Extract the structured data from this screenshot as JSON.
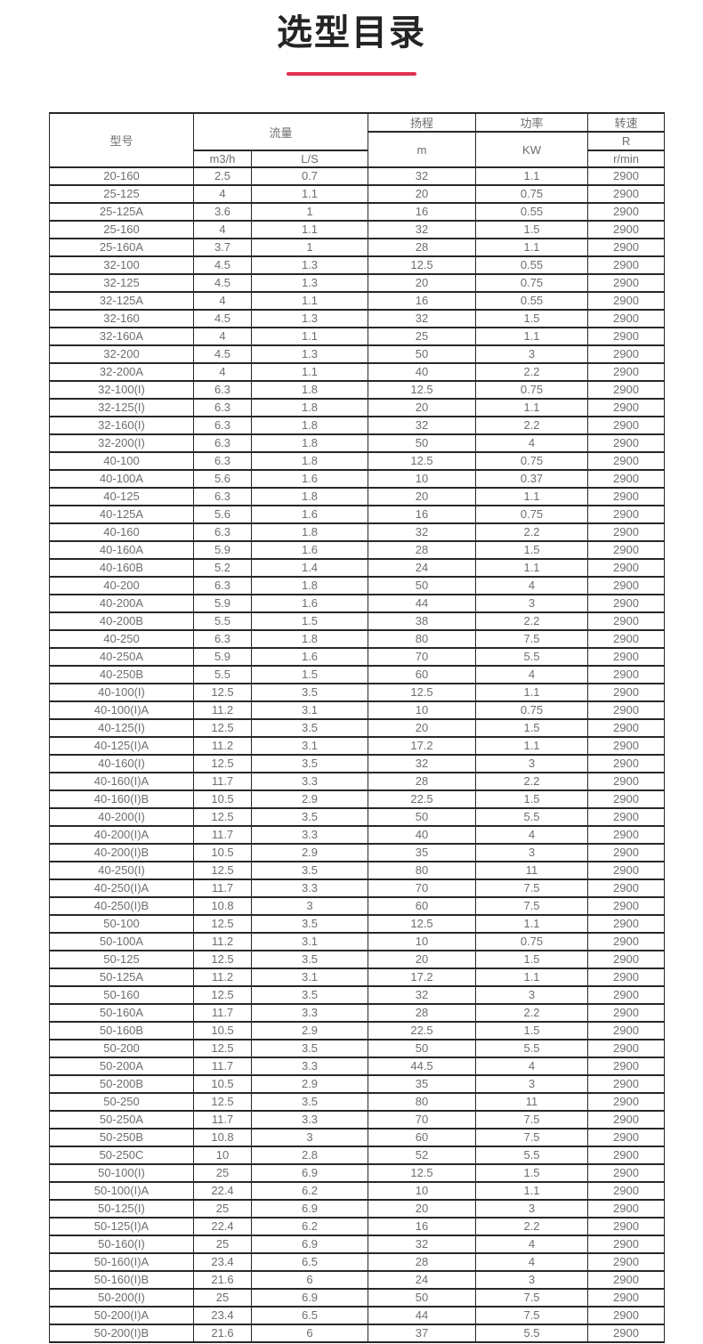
{
  "page": {
    "title": "选型目录"
  },
  "colors": {
    "accent_divider": "#e2304e",
    "title_text": "#242424",
    "table_text": "#6e6e6e",
    "table_border": "#272727",
    "background": "#ffffff"
  },
  "table": {
    "headers": {
      "model": "型号",
      "flow": "流量",
      "flow_m3h": "m3/h",
      "flow_ls": "L/S",
      "head": "扬程",
      "head_unit": "m",
      "power": "功率",
      "power_unit": "KW",
      "speed": "转速",
      "speed_r": "R",
      "speed_unit": "r/min"
    },
    "rows": [
      [
        "20-160",
        "2.5",
        "0.7",
        "32",
        "1.1",
        "2900"
      ],
      [
        "25-125",
        "4",
        "1.1",
        "20",
        "0.75",
        "2900"
      ],
      [
        "25-125A",
        "3.6",
        "1",
        "16",
        "0.55",
        "2900"
      ],
      [
        "25-160",
        "4",
        "1.1",
        "32",
        "1.5",
        "2900"
      ],
      [
        "25-160A",
        "3.7",
        "1",
        "28",
        "1.1",
        "2900"
      ],
      [
        "32-100",
        "4.5",
        "1.3",
        "12.5",
        "0.55",
        "2900"
      ],
      [
        "32-125",
        "4.5",
        "1.3",
        "20",
        "0.75",
        "2900"
      ],
      [
        "32-125A",
        "4",
        "1.1",
        "16",
        "0.55",
        "2900"
      ],
      [
        "32-160",
        "4.5",
        "1.3",
        "32",
        "1.5",
        "2900"
      ],
      [
        "32-160A",
        "4",
        "1.1",
        "25",
        "1.1",
        "2900"
      ],
      [
        "32-200",
        "4.5",
        "1.3",
        "50",
        "3",
        "2900"
      ],
      [
        "32-200A",
        "4",
        "1.1",
        "40",
        "2.2",
        "2900"
      ],
      [
        "32-100(I)",
        "6.3",
        "1.8",
        "12.5",
        "0.75",
        "2900"
      ],
      [
        "32-125(I)",
        "6.3",
        "1.8",
        "20",
        "1.1",
        "2900"
      ],
      [
        "32-160(I)",
        "6.3",
        "1.8",
        "32",
        "2.2",
        "2900"
      ],
      [
        "32-200(I)",
        "6.3",
        "1.8",
        "50",
        "4",
        "2900"
      ],
      [
        "40-100",
        "6.3",
        "1.8",
        "12.5",
        "0.75",
        "2900"
      ],
      [
        "40-100A",
        "5.6",
        "1.6",
        "10",
        "0.37",
        "2900"
      ],
      [
        "40-125",
        "6.3",
        "1.8",
        "20",
        "1.1",
        "2900"
      ],
      [
        "40-125A",
        "5.6",
        "1.6",
        "16",
        "0.75",
        "2900"
      ],
      [
        "40-160",
        "6.3",
        "1.8",
        "32",
        "2.2",
        "2900"
      ],
      [
        "40-160A",
        "5.9",
        "1.6",
        "28",
        "1.5",
        "2900"
      ],
      [
        "40-160B",
        "5.2",
        "1.4",
        "24",
        "1.1",
        "2900"
      ],
      [
        "40-200",
        "6.3",
        "1.8",
        "50",
        "4",
        "2900"
      ],
      [
        "40-200A",
        "5.9",
        "1.6",
        "44",
        "3",
        "2900"
      ],
      [
        "40-200B",
        "5.5",
        "1.5",
        "38",
        "2.2",
        "2900"
      ],
      [
        "40-250",
        "6.3",
        "1.8",
        "80",
        "7.5",
        "2900"
      ],
      [
        "40-250A",
        "5.9",
        "1.6",
        "70",
        "5.5",
        "2900"
      ],
      [
        "40-250B",
        "5.5",
        "1.5",
        "60",
        "4",
        "2900"
      ],
      [
        "40-100(I)",
        "12.5",
        "3.5",
        "12.5",
        "1.1",
        "2900"
      ],
      [
        "40-100(I)A",
        "11.2",
        "3.1",
        "10",
        "0.75",
        "2900"
      ],
      [
        "40-125(I)",
        "12.5",
        "3.5",
        "20",
        "1.5",
        "2900"
      ],
      [
        "40-125(I)A",
        "11.2",
        "3.1",
        "17.2",
        "1.1",
        "2900"
      ],
      [
        "40-160(I)",
        "12.5",
        "3.5",
        "32",
        "3",
        "2900"
      ],
      [
        "40-160(I)A",
        "11.7",
        "3.3",
        "28",
        "2.2",
        "2900"
      ],
      [
        "40-160(I)B",
        "10.5",
        "2.9",
        "22.5",
        "1.5",
        "2900"
      ],
      [
        "40-200(I)",
        "12.5",
        "3.5",
        "50",
        "5.5",
        "2900"
      ],
      [
        "40-200(I)A",
        "11.7",
        "3.3",
        "40",
        "4",
        "2900"
      ],
      [
        "40-200(I)B",
        "10.5",
        "2.9",
        "35",
        "3",
        "2900"
      ],
      [
        "40-250(I)",
        "12.5",
        "3.5",
        "80",
        "11",
        "2900"
      ],
      [
        "40-250(I)A",
        "11.7",
        "3.3",
        "70",
        "7.5",
        "2900"
      ],
      [
        "40-250(I)B",
        "10.8",
        "3",
        "60",
        "7.5",
        "2900"
      ],
      [
        "50-100",
        "12.5",
        "3.5",
        "12.5",
        "1.1",
        "2900"
      ],
      [
        "50-100A",
        "11.2",
        "3.1",
        "10",
        "0.75",
        "2900"
      ],
      [
        "50-125",
        "12.5",
        "3.5",
        "20",
        "1.5",
        "2900"
      ],
      [
        "50-125A",
        "11.2",
        "3.1",
        "17.2",
        "1.1",
        "2900"
      ],
      [
        "50-160",
        "12.5",
        "3.5",
        "32",
        "3",
        "2900"
      ],
      [
        "50-160A",
        "11.7",
        "3.3",
        "28",
        "2.2",
        "2900"
      ],
      [
        "50-160B",
        "10.5",
        "2.9",
        "22.5",
        "1.5",
        "2900"
      ],
      [
        "50-200",
        "12.5",
        "3.5",
        "50",
        "5.5",
        "2900"
      ],
      [
        "50-200A",
        "11.7",
        "3.3",
        "44.5",
        "4",
        "2900"
      ],
      [
        "50-200B",
        "10.5",
        "2.9",
        "35",
        "3",
        "2900"
      ],
      [
        "50-250",
        "12.5",
        "3.5",
        "80",
        "11",
        "2900"
      ],
      [
        "50-250A",
        "11.7",
        "3.3",
        "70",
        "7.5",
        "2900"
      ],
      [
        "50-250B",
        "10.8",
        "3",
        "60",
        "7.5",
        "2900"
      ],
      [
        "50-250C",
        "10",
        "2.8",
        "52",
        "5.5",
        "2900"
      ],
      [
        "50-100(I)",
        "25",
        "6.9",
        "12.5",
        "1.5",
        "2900"
      ],
      [
        "50-100(I)A",
        "22.4",
        "6.2",
        "10",
        "1.1",
        "2900"
      ],
      [
        "50-125(I)",
        "25",
        "6.9",
        "20",
        "3",
        "2900"
      ],
      [
        "50-125(I)A",
        "22.4",
        "6.2",
        "16",
        "2.2",
        "2900"
      ],
      [
        "50-160(I)",
        "25",
        "6.9",
        "32",
        "4",
        "2900"
      ],
      [
        "50-160(I)A",
        "23.4",
        "6.5",
        "28",
        "4",
        "2900"
      ],
      [
        "50-160(I)B",
        "21.6",
        "6",
        "24",
        "3",
        "2900"
      ],
      [
        "50-200(I)",
        "25",
        "6.9",
        "50",
        "7.5",
        "2900"
      ],
      [
        "50-200(I)A",
        "23.4",
        "6.5",
        "44",
        "7.5",
        "2900"
      ],
      [
        "50-200(I)B",
        "21.6",
        "6",
        "37",
        "5.5",
        "2900"
      ]
    ]
  }
}
